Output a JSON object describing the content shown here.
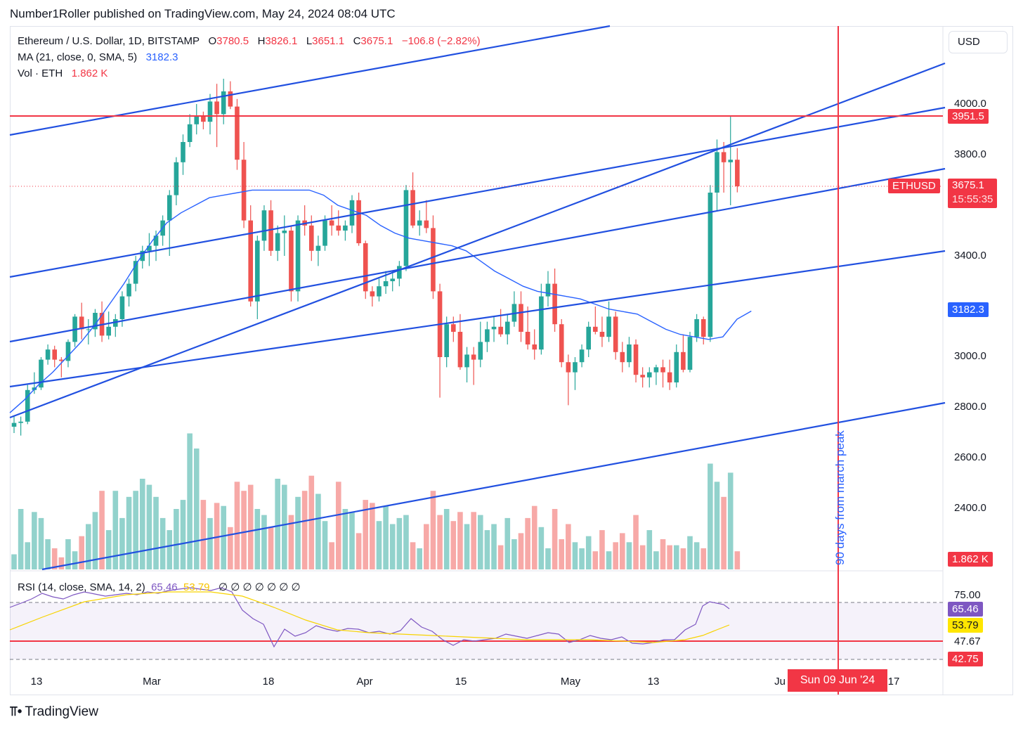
{
  "header": "Number1Roller published on TradingView.com, May 24, 2024 08:04 UTC",
  "legend": {
    "symbol": "Ethereum / U.S. Dollar, 1D, BITSTAMP",
    "o_label": "O",
    "o": "3780.5",
    "h_label": "H",
    "h": "3826.1",
    "l_label": "L",
    "l": "3651.1",
    "c_label": "C",
    "c": "3675.1",
    "change": "−106.8 (−2.82%)",
    "ma_label": "MA (21, close, 0, SMA, 5)",
    "ma_value": "3182.3",
    "vol_label": "Vol · ETH",
    "vol_value": "1.862 K"
  },
  "rsi_legend": {
    "label": "RSI (14, close, SMA, 14, 2)",
    "rsi": "65.46",
    "sma": "53.79",
    "extras": "∅ ∅ ∅ ∅ ∅ ∅ ∅"
  },
  "currency_button": "USD",
  "price_axis": [
    "4000.0",
    "3800.0",
    "3400.0",
    "3000.0",
    "2800.0",
    "2600.0",
    "2400.0"
  ],
  "price_tags": {
    "resistance": "3951.5",
    "symbol": "ETHUSD",
    "last": "3675.1",
    "countdown": "15:55:35",
    "ma": "3182.3",
    "volume": "1.862 K"
  },
  "rsi_axis": {
    "upper": "75.00",
    "rsi_value": "65.46",
    "sma_value": "53.79",
    "line": "47.67",
    "lower": "42.75"
  },
  "time_axis": [
    "13",
    "Mar",
    "18",
    "Apr",
    "15",
    "May",
    "13",
    "Ju",
    "17"
  ],
  "crosshair_date": "Sun 09 Jun '24",
  "annotation": "90 days from march peak",
  "footer_brand": "TradingView",
  "colors": {
    "up": "#26a69a",
    "down": "#ef5350",
    "trend": "#2150e0",
    "ma": "#2962ff",
    "resistance": "#f23645",
    "rsi": "#7e57c2",
    "rsi_sma": "#f7d300"
  },
  "chart_data": {
    "type": "candlestick",
    "title": "Ethereum / U.S. Dollar, 1D, BITSTAMP",
    "ylim": [
      2140,
      4330
    ],
    "resistance_level": 3951.5,
    "candles": [
      [
        2725,
        2770,
        2700,
        2740
      ],
      [
        2740,
        2765,
        2690,
        2745
      ],
      [
        2745,
        2890,
        2735,
        2870
      ],
      [
        2870,
        2940,
        2855,
        2880
      ],
      [
        2880,
        3000,
        2870,
        2990
      ],
      [
        2990,
        3050,
        2970,
        3030
      ],
      [
        3030,
        3045,
        2960,
        2990
      ],
      [
        2990,
        3000,
        2920,
        2985
      ],
      [
        2985,
        3070,
        2960,
        3060
      ],
      [
        3060,
        3170,
        3040,
        3160
      ],
      [
        3160,
        3215,
        3070,
        3110
      ],
      [
        3110,
        3150,
        3050,
        3110
      ],
      [
        3110,
        3190,
        3080,
        3175
      ],
      [
        3175,
        3220,
        3060,
        3085
      ],
      [
        3085,
        3180,
        3070,
        3120
      ],
      [
        3120,
        3170,
        3080,
        3150
      ],
      [
        3150,
        3260,
        3120,
        3240
      ],
      [
        3240,
        3310,
        3200,
        3290
      ],
      [
        3290,
        3400,
        3260,
        3380
      ],
      [
        3380,
        3440,
        3350,
        3420
      ],
      [
        3420,
        3490,
        3360,
        3440
      ],
      [
        3440,
        3500,
        3380,
        3480
      ],
      [
        3480,
        3560,
        3440,
        3540
      ],
      [
        3540,
        3660,
        3400,
        3640
      ],
      [
        3640,
        3790,
        3600,
        3770
      ],
      [
        3770,
        3880,
        3720,
        3850
      ],
      [
        3850,
        3960,
        3830,
        3920
      ],
      [
        3920,
        4000,
        3880,
        3950
      ],
      [
        3950,
        3970,
        3900,
        3930
      ],
      [
        3930,
        4040,
        3880,
        4010
      ],
      [
        4010,
        4080,
        3830,
        3960
      ],
      [
        3960,
        4100,
        3920,
        4050
      ],
      [
        4050,
        4090,
        3980,
        3990
      ],
      [
        3990,
        4020,
        3740,
        3780
      ],
      [
        3780,
        3850,
        3510,
        3540
      ],
      [
        3540,
        3600,
        3200,
        3220
      ],
      [
        3220,
        3480,
        3150,
        3460
      ],
      [
        3460,
        3600,
        3420,
        3580
      ],
      [
        3580,
        3620,
        3400,
        3420
      ],
      [
        3420,
        3520,
        3380,
        3490
      ],
      [
        3490,
        3560,
        3400,
        3500
      ],
      [
        3500,
        3520,
        3220,
        3260
      ],
      [
        3260,
        3560,
        3220,
        3540
      ],
      [
        3540,
        3600,
        3480,
        3520
      ],
      [
        3520,
        3560,
        3380,
        3420
      ],
      [
        3420,
        3480,
        3360,
        3440
      ],
      [
        3440,
        3560,
        3420,
        3540
      ],
      [
        3540,
        3600,
        3480,
        3520
      ],
      [
        3520,
        3580,
        3480,
        3500
      ],
      [
        3500,
        3540,
        3460,
        3520
      ],
      [
        3520,
        3640,
        3490,
        3620
      ],
      [
        3620,
        3650,
        3440,
        3450
      ],
      [
        3450,
        3460,
        3230,
        3260
      ],
      [
        3260,
        3280,
        3200,
        3240
      ],
      [
        3240,
        3310,
        3220,
        3280
      ],
      [
        3280,
        3340,
        3250,
        3300
      ],
      [
        3300,
        3340,
        3260,
        3310
      ],
      [
        3310,
        3380,
        3280,
        3360
      ],
      [
        3360,
        3680,
        3340,
        3660
      ],
      [
        3660,
        3730,
        3510,
        3520
      ],
      [
        3520,
        3580,
        3480,
        3540
      ],
      [
        3540,
        3620,
        3490,
        3510
      ],
      [
        3510,
        3560,
        3230,
        3260
      ],
      [
        3260,
        3290,
        2840,
        3000
      ],
      [
        3000,
        3160,
        2960,
        3130
      ],
      [
        3130,
        3160,
        3060,
        3100
      ],
      [
        3100,
        3170,
        2950,
        2960
      ],
      [
        2960,
        3040,
        2900,
        3010
      ],
      [
        3010,
        3040,
        2890,
        2990
      ],
      [
        2990,
        3140,
        2960,
        3060
      ],
      [
        3060,
        3140,
        3020,
        3110
      ],
      [
        3110,
        3160,
        3060,
        3120
      ],
      [
        3120,
        3190,
        3080,
        3090
      ],
      [
        3090,
        3170,
        3050,
        3140
      ],
      [
        3140,
        3260,
        3120,
        3210
      ],
      [
        3210,
        3260,
        3060,
        3100
      ],
      [
        3100,
        3200,
        3030,
        3050
      ],
      [
        3050,
        3110,
        2990,
        3030
      ],
      [
        3030,
        3290,
        3010,
        3240
      ],
      [
        3240,
        3340,
        3200,
        3290
      ],
      [
        3290,
        3350,
        3100,
        3130
      ],
      [
        3130,
        3150,
        2960,
        2980
      ],
      [
        2980,
        3010,
        2810,
        2940
      ],
      [
        2940,
        3000,
        2870,
        2980
      ],
      [
        2980,
        3050,
        2960,
        3030
      ],
      [
        3030,
        3140,
        3000,
        3120
      ],
      [
        3120,
        3200,
        3090,
        3100
      ],
      [
        3100,
        3160,
        3040,
        3080
      ],
      [
        3080,
        3220,
        3060,
        3160
      ],
      [
        3160,
        3180,
        2990,
        3020
      ],
      [
        3020,
        3060,
        2940,
        2980
      ],
      [
        2980,
        3080,
        2960,
        3050
      ],
      [
        3050,
        3070,
        2900,
        2930
      ],
      [
        2930,
        2960,
        2880,
        2920
      ],
      [
        2920,
        2960,
        2880,
        2940
      ],
      [
        2940,
        2970,
        2890,
        2960
      ],
      [
        2960,
        2990,
        2880,
        2940
      ],
      [
        2940,
        2990,
        2870,
        2900
      ],
      [
        2900,
        3050,
        2880,
        3020
      ],
      [
        3020,
        3090,
        2940,
        2950
      ],
      [
        2950,
        3100,
        2940,
        3080
      ],
      [
        3080,
        3170,
        3060,
        3150
      ],
      [
        3150,
        3160,
        3050,
        3080
      ],
      [
        3080,
        3680,
        3060,
        3650
      ],
      [
        3650,
        3860,
        3580,
        3810
      ],
      [
        3810,
        3850,
        3650,
        3770
      ],
      [
        3770,
        3950,
        3600,
        3780
      ],
      [
        3780,
        3826,
        3651,
        3675
      ]
    ],
    "ma21": [
      2780,
      2830,
      2890,
      2940,
      3000,
      3060,
      3130,
      3210,
      3290,
      3380,
      3460,
      3530,
      3570,
      3600,
      3630,
      3640,
      3650,
      3660,
      3660,
      3660,
      3660,
      3660,
      3640,
      3600,
      3580,
      3560,
      3520,
      3490,
      3470,
      3460,
      3450,
      3440,
      3420,
      3380,
      3340,
      3310,
      3280,
      3260,
      3250,
      3240,
      3230,
      3210,
      3190,
      3180,
      3170,
      3140,
      3110,
      3090,
      3080,
      3070,
      3080,
      3150,
      3182
    ],
    "ma21_start_index": 0,
    "volume": [
      5,
      20,
      9,
      19,
      17,
      10,
      7,
      4,
      10,
      6,
      11,
      15,
      19,
      26,
      13,
      26,
      17,
      24,
      26,
      30,
      28,
      24,
      17,
      13,
      20,
      23,
      45,
      40,
      23,
      17,
      22,
      21,
      14,
      29,
      26,
      28,
      20,
      18,
      14,
      30,
      28,
      18,
      24,
      26,
      31,
      25,
      16,
      9,
      29,
      20,
      19,
      12,
      23,
      22,
      16,
      21,
      15,
      17,
      18,
      9,
      7,
      15,
      26,
      18,
      20,
      16,
      19,
      15,
      19,
      18,
      13,
      15,
      8,
      17,
      10,
      12,
      17,
      21,
      14,
      7,
      20,
      10,
      15,
      9,
      7,
      11,
      6,
      13,
      6,
      9,
      12,
      9,
      18,
      8,
      13,
      6,
      10,
      8,
      8,
      7,
      11,
      9,
      7,
      35,
      29,
      24,
      32,
      6
    ],
    "trendlines_in_pixels_note": "",
    "rsi_levels": [
      75.0,
      47.67,
      42.75
    ],
    "rsi_last": 65.46,
    "rsi_sma_last": 53.79
  }
}
